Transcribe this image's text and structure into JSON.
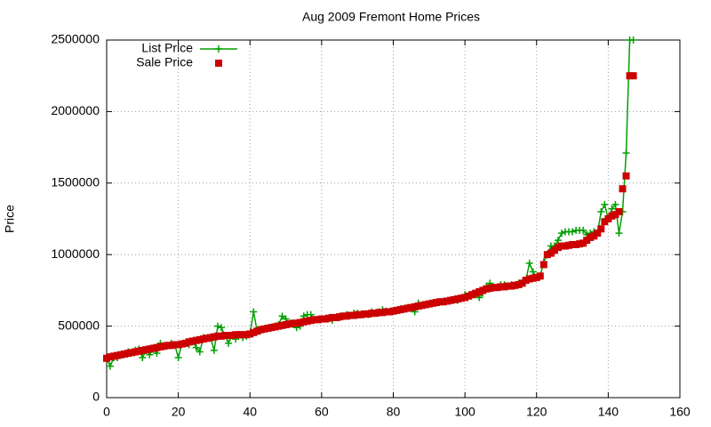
{
  "chart_data": {
    "type": "line",
    "title": "Aug 2009 Fremont Home Prices",
    "ylabel": "Price",
    "x": [
      0,
      1,
      2,
      3,
      4,
      5,
      6,
      7,
      8,
      9,
      10,
      11,
      12,
      13,
      14,
      15,
      16,
      17,
      18,
      19,
      20,
      21,
      22,
      23,
      24,
      25,
      26,
      27,
      28,
      29,
      30,
      31,
      32,
      33,
      34,
      35,
      36,
      37,
      38,
      39,
      40,
      41,
      42,
      43,
      44,
      45,
      46,
      47,
      48,
      49,
      50,
      51,
      52,
      53,
      54,
      55,
      56,
      57,
      58,
      59,
      60,
      61,
      62,
      63,
      64,
      65,
      66,
      67,
      68,
      69,
      70,
      71,
      72,
      73,
      74,
      75,
      76,
      77,
      78,
      79,
      80,
      81,
      82,
      83,
      84,
      85,
      86,
      87,
      88,
      89,
      90,
      91,
      92,
      93,
      94,
      95,
      96,
      97,
      98,
      99,
      100,
      101,
      102,
      103,
      104,
      105,
      106,
      107,
      108,
      109,
      110,
      111,
      112,
      113,
      114,
      115,
      116,
      117,
      118,
      119,
      120,
      121,
      122,
      123,
      124,
      125,
      126,
      127,
      128,
      129,
      130,
      131,
      132,
      133,
      134,
      135,
      136,
      137,
      138,
      139,
      140,
      141,
      142,
      143,
      144,
      145,
      146,
      147
    ],
    "series": [
      {
        "name": "List Price",
        "color": "#00a000",
        "style": "linespoints",
        "values": [
          275000,
          220000,
          280000,
          280000,
          300000,
          305000,
          320000,
          315000,
          330000,
          340000,
          280000,
          330000,
          300000,
          340000,
          310000,
          380000,
          360000,
          365000,
          380000,
          370000,
          280000,
          375000,
          380000,
          370000,
          390000,
          350000,
          320000,
          420000,
          415000,
          420000,
          330000,
          500000,
          490000,
          435000,
          380000,
          435000,
          410000,
          440000,
          420000,
          430000,
          445000,
          600000,
          465000,
          470000,
          480000,
          485000,
          490000,
          500000,
          510000,
          570000,
          550000,
          515000,
          520000,
          490000,
          500000,
          570000,
          580000,
          580000,
          545000,
          545000,
          550000,
          550000,
          555000,
          540000,
          560000,
          560000,
          570000,
          580000,
          575000,
          590000,
          590000,
          580000,
          585000,
          580000,
          600000,
          590000,
          600000,
          615000,
          605000,
          600000,
          605000,
          610000,
          620000,
          620000,
          630000,
          625000,
          600000,
          660000,
          645000,
          650000,
          655000,
          660000,
          665000,
          670000,
          670000,
          675000,
          680000,
          685000,
          680000,
          695000,
          720000,
          710000,
          720000,
          725000,
          700000,
          730000,
          780000,
          800000,
          770000,
          770000,
          790000,
          790000,
          780000,
          790000,
          785000,
          800000,
          800000,
          820000,
          940000,
          880000,
          840000,
          850000,
          950000,
          1000000,
          1060000,
          1060000,
          1100000,
          1150000,
          1160000,
          1160000,
          1160000,
          1170000,
          1170000,
          1170000,
          1140000,
          1150000,
          1160000,
          1150000,
          1300000,
          1350000,
          1250000,
          1320000,
          1350000,
          1150000,
          1300000,
          1710000,
          2500000,
          2500000
        ]
      },
      {
        "name": "Sale Price",
        "color": "#cc0000",
        "style": "points",
        "values": [
          275000,
          285000,
          290000,
          295000,
          300000,
          305000,
          310000,
          315000,
          320000,
          325000,
          330000,
          335000,
          340000,
          345000,
          350000,
          355000,
          360000,
          365000,
          365000,
          370000,
          370000,
          375000,
          380000,
          390000,
          395000,
          400000,
          405000,
          410000,
          415000,
          420000,
          425000,
          430000,
          430000,
          435000,
          435000,
          435000,
          440000,
          440000,
          440000,
          440000,
          445000,
          455000,
          465000,
          475000,
          480000,
          485000,
          490000,
          495000,
          500000,
          505000,
          510000,
          515000,
          520000,
          520000,
          525000,
          530000,
          535000,
          540000,
          545000,
          545000,
          550000,
          550000,
          555000,
          560000,
          560000,
          565000,
          570000,
          570000,
          575000,
          575000,
          580000,
          580000,
          585000,
          585000,
          590000,
          590000,
          595000,
          595000,
          600000,
          600000,
          605000,
          610000,
          615000,
          620000,
          625000,
          630000,
          635000,
          640000,
          645000,
          650000,
          655000,
          660000,
          665000,
          670000,
          670000,
          675000,
          680000,
          685000,
          690000,
          695000,
          700000,
          710000,
          720000,
          730000,
          740000,
          750000,
          760000,
          765000,
          770000,
          770000,
          775000,
          775000,
          780000,
          780000,
          785000,
          790000,
          800000,
          820000,
          830000,
          835000,
          840000,
          850000,
          930000,
          1000000,
          1010000,
          1030000,
          1050000,
          1060000,
          1060000,
          1065000,
          1070000,
          1070000,
          1075000,
          1080000,
          1100000,
          1120000,
          1130000,
          1150000,
          1180000,
          1230000,
          1250000,
          1270000,
          1280000,
          1300000,
          1460000,
          1550000,
          2250000,
          2250000
        ]
      }
    ],
    "xlim": [
      0,
      160
    ],
    "xticks": [
      0,
      20,
      40,
      60,
      80,
      100,
      120,
      140,
      160
    ],
    "ylim": [
      0,
      2500000
    ],
    "yticks": [
      0,
      500000,
      1000000,
      1500000,
      2000000,
      2500000
    ],
    "grid": true,
    "legend": "top-left"
  }
}
